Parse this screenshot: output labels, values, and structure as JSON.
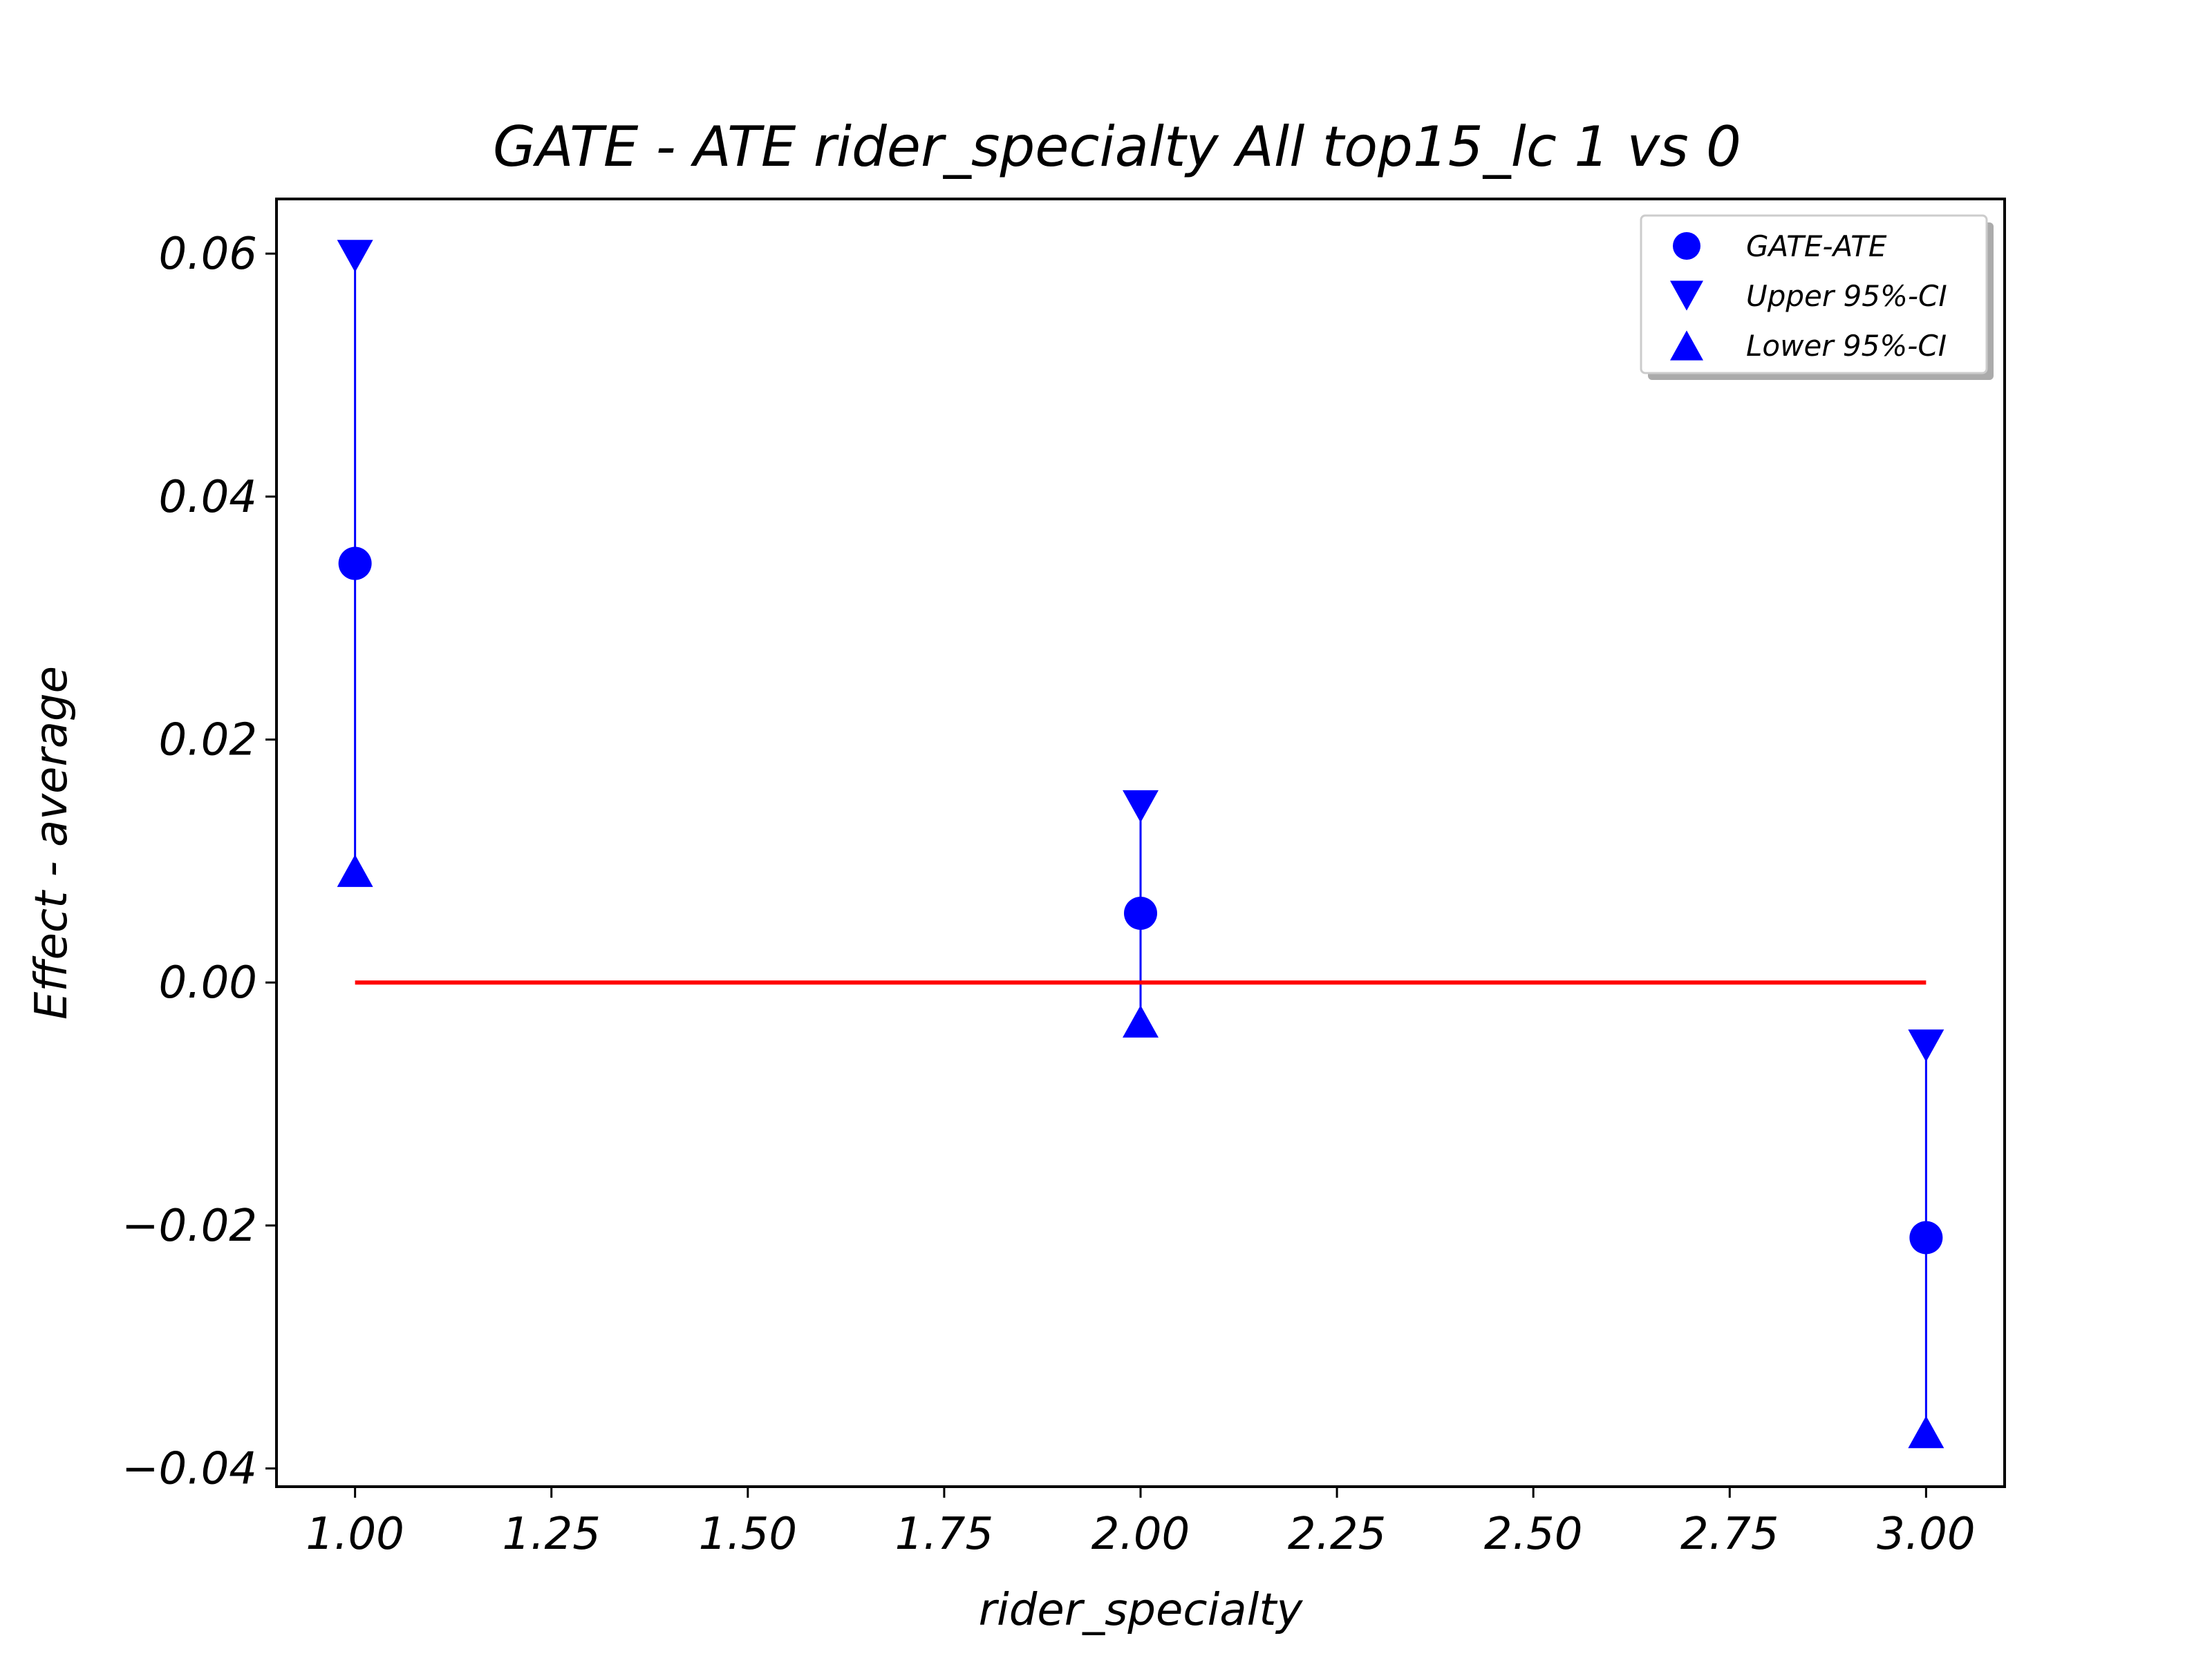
{
  "chart_data": {
    "type": "scatter",
    "title": "GATE - ATE rider_specialty All top15_lc  1 vs 0",
    "xlabel": "rider_specialty",
    "ylabel": "Effect - average",
    "xlim": [
      0.9,
      3.1
    ],
    "ylim": [
      -0.0415,
      0.0645
    ],
    "x_ticks": [
      1.0,
      1.25,
      1.5,
      1.75,
      2.0,
      2.25,
      2.5,
      2.75,
      3.0
    ],
    "x_tick_labels": [
      "1.00",
      "1.25",
      "1.50",
      "1.75",
      "2.00",
      "2.25",
      "2.50",
      "2.75",
      "3.00"
    ],
    "y_ticks": [
      -0.04,
      -0.02,
      0.0,
      0.02,
      0.04,
      0.06
    ],
    "y_tick_labels": [
      "−0.04",
      "−0.02",
      "0.00",
      "0.02",
      "0.04",
      "0.06"
    ],
    "x": [
      1.0,
      2.0,
      3.0
    ],
    "series": [
      {
        "name": "GATE-ATE",
        "marker": "circle",
        "values": [
          0.0345,
          0.0057,
          -0.021
        ]
      },
      {
        "name": "Upper 95%-CI",
        "marker": "triangle-down",
        "values": [
          0.0598,
          0.0145,
          -0.0052
        ]
      },
      {
        "name": "Lower 95%-CI",
        "marker": "triangle-up",
        "values": [
          0.0092,
          -0.0032,
          -0.037
        ]
      }
    ],
    "reference_line": {
      "y": 0.0,
      "x_range": [
        1.0,
        3.0
      ],
      "color": "#ff0000"
    },
    "marker_color": "#0000ff",
    "grid": false,
    "legend_position": "top-right"
  }
}
